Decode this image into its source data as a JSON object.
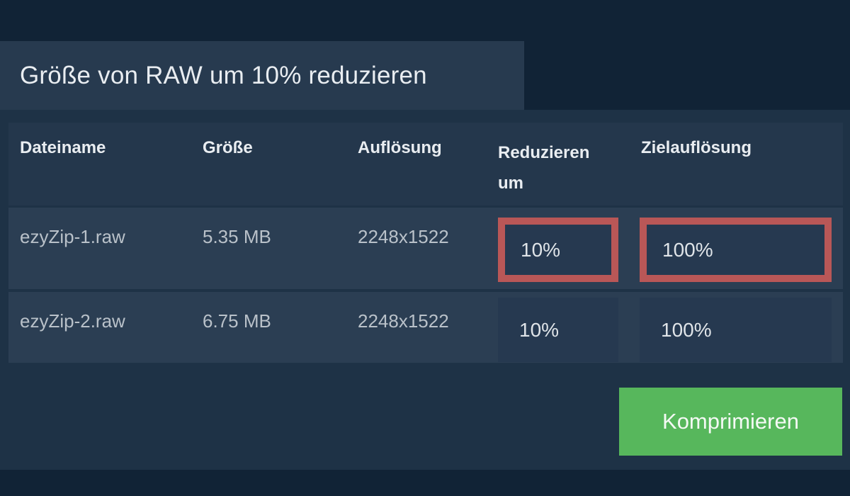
{
  "header": {
    "title": "Größe von RAW um 10% reduzieren"
  },
  "table": {
    "columns": [
      {
        "label": "Dateiname"
      },
      {
        "label": "Größe"
      },
      {
        "label": "Auflösung"
      },
      {
        "label": "Reduzieren um"
      },
      {
        "label": "Zielauflösung"
      }
    ],
    "rows": [
      {
        "filename": "ezyZip-1.raw",
        "size": "5.35 MB",
        "resolution": "2248x1522",
        "reduce_by": "10%",
        "target_resolution": "100%",
        "highlighted": true
      },
      {
        "filename": "ezyZip-2.raw",
        "size": "6.75 MB",
        "resolution": "2248x1522",
        "reduce_by": "10%",
        "target_resolution": "100%",
        "highlighted": false
      }
    ]
  },
  "actions": {
    "compress_label": "Komprimieren"
  },
  "colors": {
    "page_bg": "#112336",
    "content_bg": "#1e3246",
    "panel_bg": "#273a4f",
    "header_bg": "#24374c",
    "row_bg": "#2b3e53",
    "field_bg": "#263950",
    "accent_red": "#b95757",
    "button_green": "#57b75c",
    "text_bright": "#e9edf1",
    "text_muted": "#b9c1c9",
    "button_text": "#f4f9f4"
  }
}
